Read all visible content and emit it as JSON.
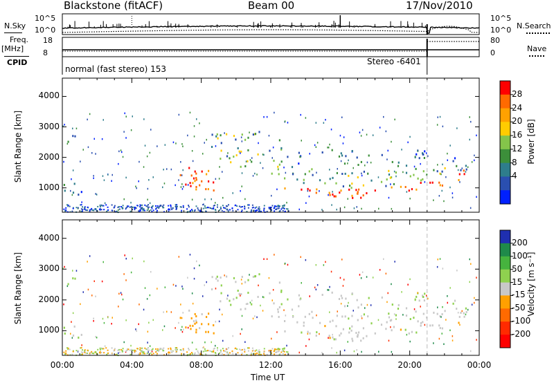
{
  "header": {
    "station": "Blackstone (fitACF)",
    "beam": "Beam 00",
    "date": "17/Nov/2010"
  },
  "summary": {
    "nsky_label": "N.Sky",
    "nsearch_label": "N.Search",
    "freq_label": "Freq.",
    "freq_unit": "[MHz]",
    "nave_label": "Nave",
    "cpid_label": "CPID",
    "nsky_ticks": [
      "10^5",
      "10^0"
    ],
    "nsearch_ticks": [
      "10^5",
      "10^0"
    ],
    "freq_ticks": [
      "18",
      "8"
    ],
    "nave_ticks": [
      "80",
      "0"
    ],
    "cpid_text": "normal (fast stereo) 153",
    "cpid_text2": "Stereo -6401"
  },
  "chart_data": [
    {
      "type": "heatmap",
      "name": "power",
      "ylabel": "Slant Range [km]",
      "yticks": [
        1000,
        2000,
        3000,
        4000
      ],
      "ylim": [
        200,
        4600
      ],
      "xlim": [
        0,
        24
      ],
      "colorbar": {
        "label": "Power [dB]",
        "ticks": [
          "28",
          "24",
          "20",
          "16",
          "12",
          "8",
          "4"
        ],
        "colors": [
          "#ff0000",
          "#ff6a00",
          "#ffa100",
          "#ffcc00",
          "#84c44a",
          "#3c8f3a",
          "#2e7d8c",
          "#2a4fb0",
          "#0020ff"
        ]
      }
    },
    {
      "type": "heatmap",
      "name": "velocity",
      "ylabel": "Slant Range [km]",
      "yticks": [
        1000,
        2000,
        3000,
        4000
      ],
      "ylim": [
        200,
        4600
      ],
      "xlim": [
        0,
        24
      ],
      "xlabel": "Time UT",
      "xticks": [
        "00:00",
        "04:00",
        "08:00",
        "12:00",
        "16:00",
        "20:00",
        "00:00"
      ],
      "colorbar": {
        "label": "Velocity [m s⁻¹]",
        "ticks": [
          "200",
          "100",
          "50",
          "15",
          "-15",
          "-50",
          "-100",
          "-200"
        ],
        "colors": [
          "#1f2fb0",
          "#1f8a4a",
          "#46b33e",
          "#8fd14f",
          "#c8c8c8",
          "#ffa000",
          "#ff6a00",
          "#ff2a00",
          "#ff0000"
        ]
      }
    }
  ],
  "colors": {
    "frame": "#000000",
    "dashed": "#bbbbbb"
  }
}
